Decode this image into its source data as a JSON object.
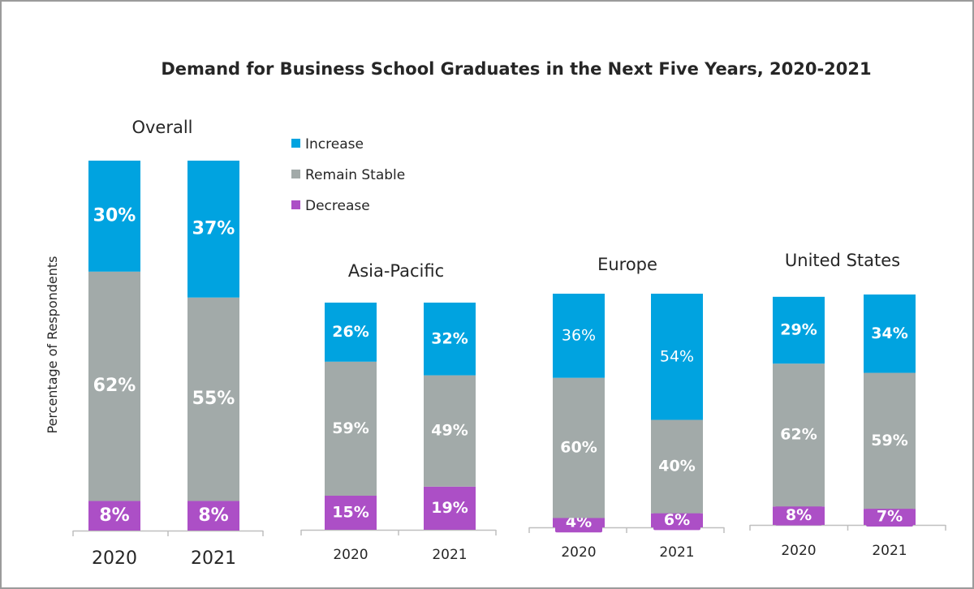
{
  "colors": {
    "increase": "#00a3e0",
    "stable": "#a2aaa9",
    "decrease": "#ac4fc6",
    "text": "#262626",
    "axis": "#bfbfbf"
  },
  "chart_data": {
    "type": "bar",
    "stacked": true,
    "title": "Demand for Business School Graduates in the Next Five Years, 2020-2021",
    "ylabel": "Percentage of Respondents",
    "legend": [
      "Increase",
      "Remain Stable",
      "Decrease"
    ],
    "legend_position": "top-left",
    "panels": [
      {
        "name": "Overall",
        "categories": [
          "2020",
          "2021"
        ],
        "series": [
          {
            "name": "Decrease",
            "values": [
              8,
              8
            ],
            "labels": [
              "8%",
              "8%"
            ]
          },
          {
            "name": "Remain Stable",
            "values": [
              62,
              55
            ],
            "labels": [
              "62%",
              "55%"
            ]
          },
          {
            "name": "Increase",
            "values": [
              30,
              37
            ],
            "labels": [
              "30%",
              "37%"
            ]
          }
        ]
      },
      {
        "name": "Asia-Pacific",
        "categories": [
          "2020",
          "2021"
        ],
        "series": [
          {
            "name": "Decrease",
            "values": [
              15,
              19
            ],
            "labels": [
              "15%",
              "19%"
            ]
          },
          {
            "name": "Remain Stable",
            "values": [
              59,
              49
            ],
            "labels": [
              "59%",
              "49%"
            ]
          },
          {
            "name": "Increase",
            "values": [
              26,
              32
            ],
            "labels": [
              "26%",
              "32%"
            ]
          }
        ]
      },
      {
        "name": "Europe",
        "categories": [
          "2020",
          "2021"
        ],
        "series": [
          {
            "name": "Decrease",
            "values": [
              4,
              6
            ],
            "labels": [
              "4%",
              "6%"
            ]
          },
          {
            "name": "Remain Stable",
            "values": [
              60,
              40
            ],
            "labels": [
              "60%",
              "40%"
            ]
          },
          {
            "name": "Increase",
            "values": [
              36,
              54
            ],
            "labels": [
              "36%",
              "54%"
            ]
          }
        ]
      },
      {
        "name": "United States",
        "categories": [
          "2020",
          "2021"
        ],
        "series": [
          {
            "name": "Decrease",
            "values": [
              8,
              7
            ],
            "labels": [
              "8%",
              "7%"
            ]
          },
          {
            "name": "Remain Stable",
            "values": [
              62,
              59
            ],
            "labels": [
              "62%",
              "59%"
            ]
          },
          {
            "name": "Increase",
            "values": [
              29,
              34
            ],
            "labels": [
              "29%",
              "34%"
            ]
          }
        ]
      }
    ]
  }
}
